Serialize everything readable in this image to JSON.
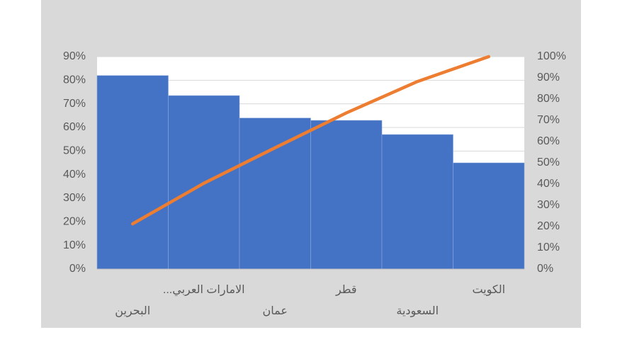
{
  "chart_data": {
    "type": "pareto",
    "categories": [
      "البحرين",
      "الامارات العربي...",
      "عمان",
      "قطر",
      "السعودية",
      "الكويت"
    ],
    "series": [
      {
        "type": "bar",
        "color": "#4472c4",
        "values": [
          82,
          73.5,
          64,
          63,
          57,
          45
        ]
      },
      {
        "type": "line",
        "axis": "y2",
        "color": "#ed7d31",
        "values": [
          21.3,
          40.4,
          57.1,
          73.5,
          88.3,
          100
        ]
      }
    ],
    "ylim": [
      0,
      90
    ],
    "yticks": [
      {
        "value": 0,
        "label": "0%"
      },
      {
        "value": 10,
        "label": "10%"
      },
      {
        "value": 20,
        "label": "20%"
      },
      {
        "value": 30,
        "label": "30%"
      },
      {
        "value": 40,
        "label": "40%"
      },
      {
        "value": 50,
        "label": "50%"
      },
      {
        "value": 60,
        "label": "60%"
      },
      {
        "value": 70,
        "label": "70%"
      },
      {
        "value": 80,
        "label": "80%"
      },
      {
        "value": 90,
        "label": "90%"
      }
    ],
    "y2lim": [
      0,
      100
    ],
    "y2ticks": [
      {
        "value": 0,
        "label": "0%"
      },
      {
        "value": 10,
        "label": "10%"
      },
      {
        "value": 20,
        "label": "20%"
      },
      {
        "value": 30,
        "label": "30%"
      },
      {
        "value": 40,
        "label": "40%"
      },
      {
        "value": 50,
        "label": "50%"
      },
      {
        "value": 60,
        "label": "60%"
      },
      {
        "value": 70,
        "label": "70%"
      },
      {
        "value": 80,
        "label": "80%"
      },
      {
        "value": 90,
        "label": "90%"
      },
      {
        "value": 100,
        "label": "100%"
      }
    ],
    "grid": true
  }
}
